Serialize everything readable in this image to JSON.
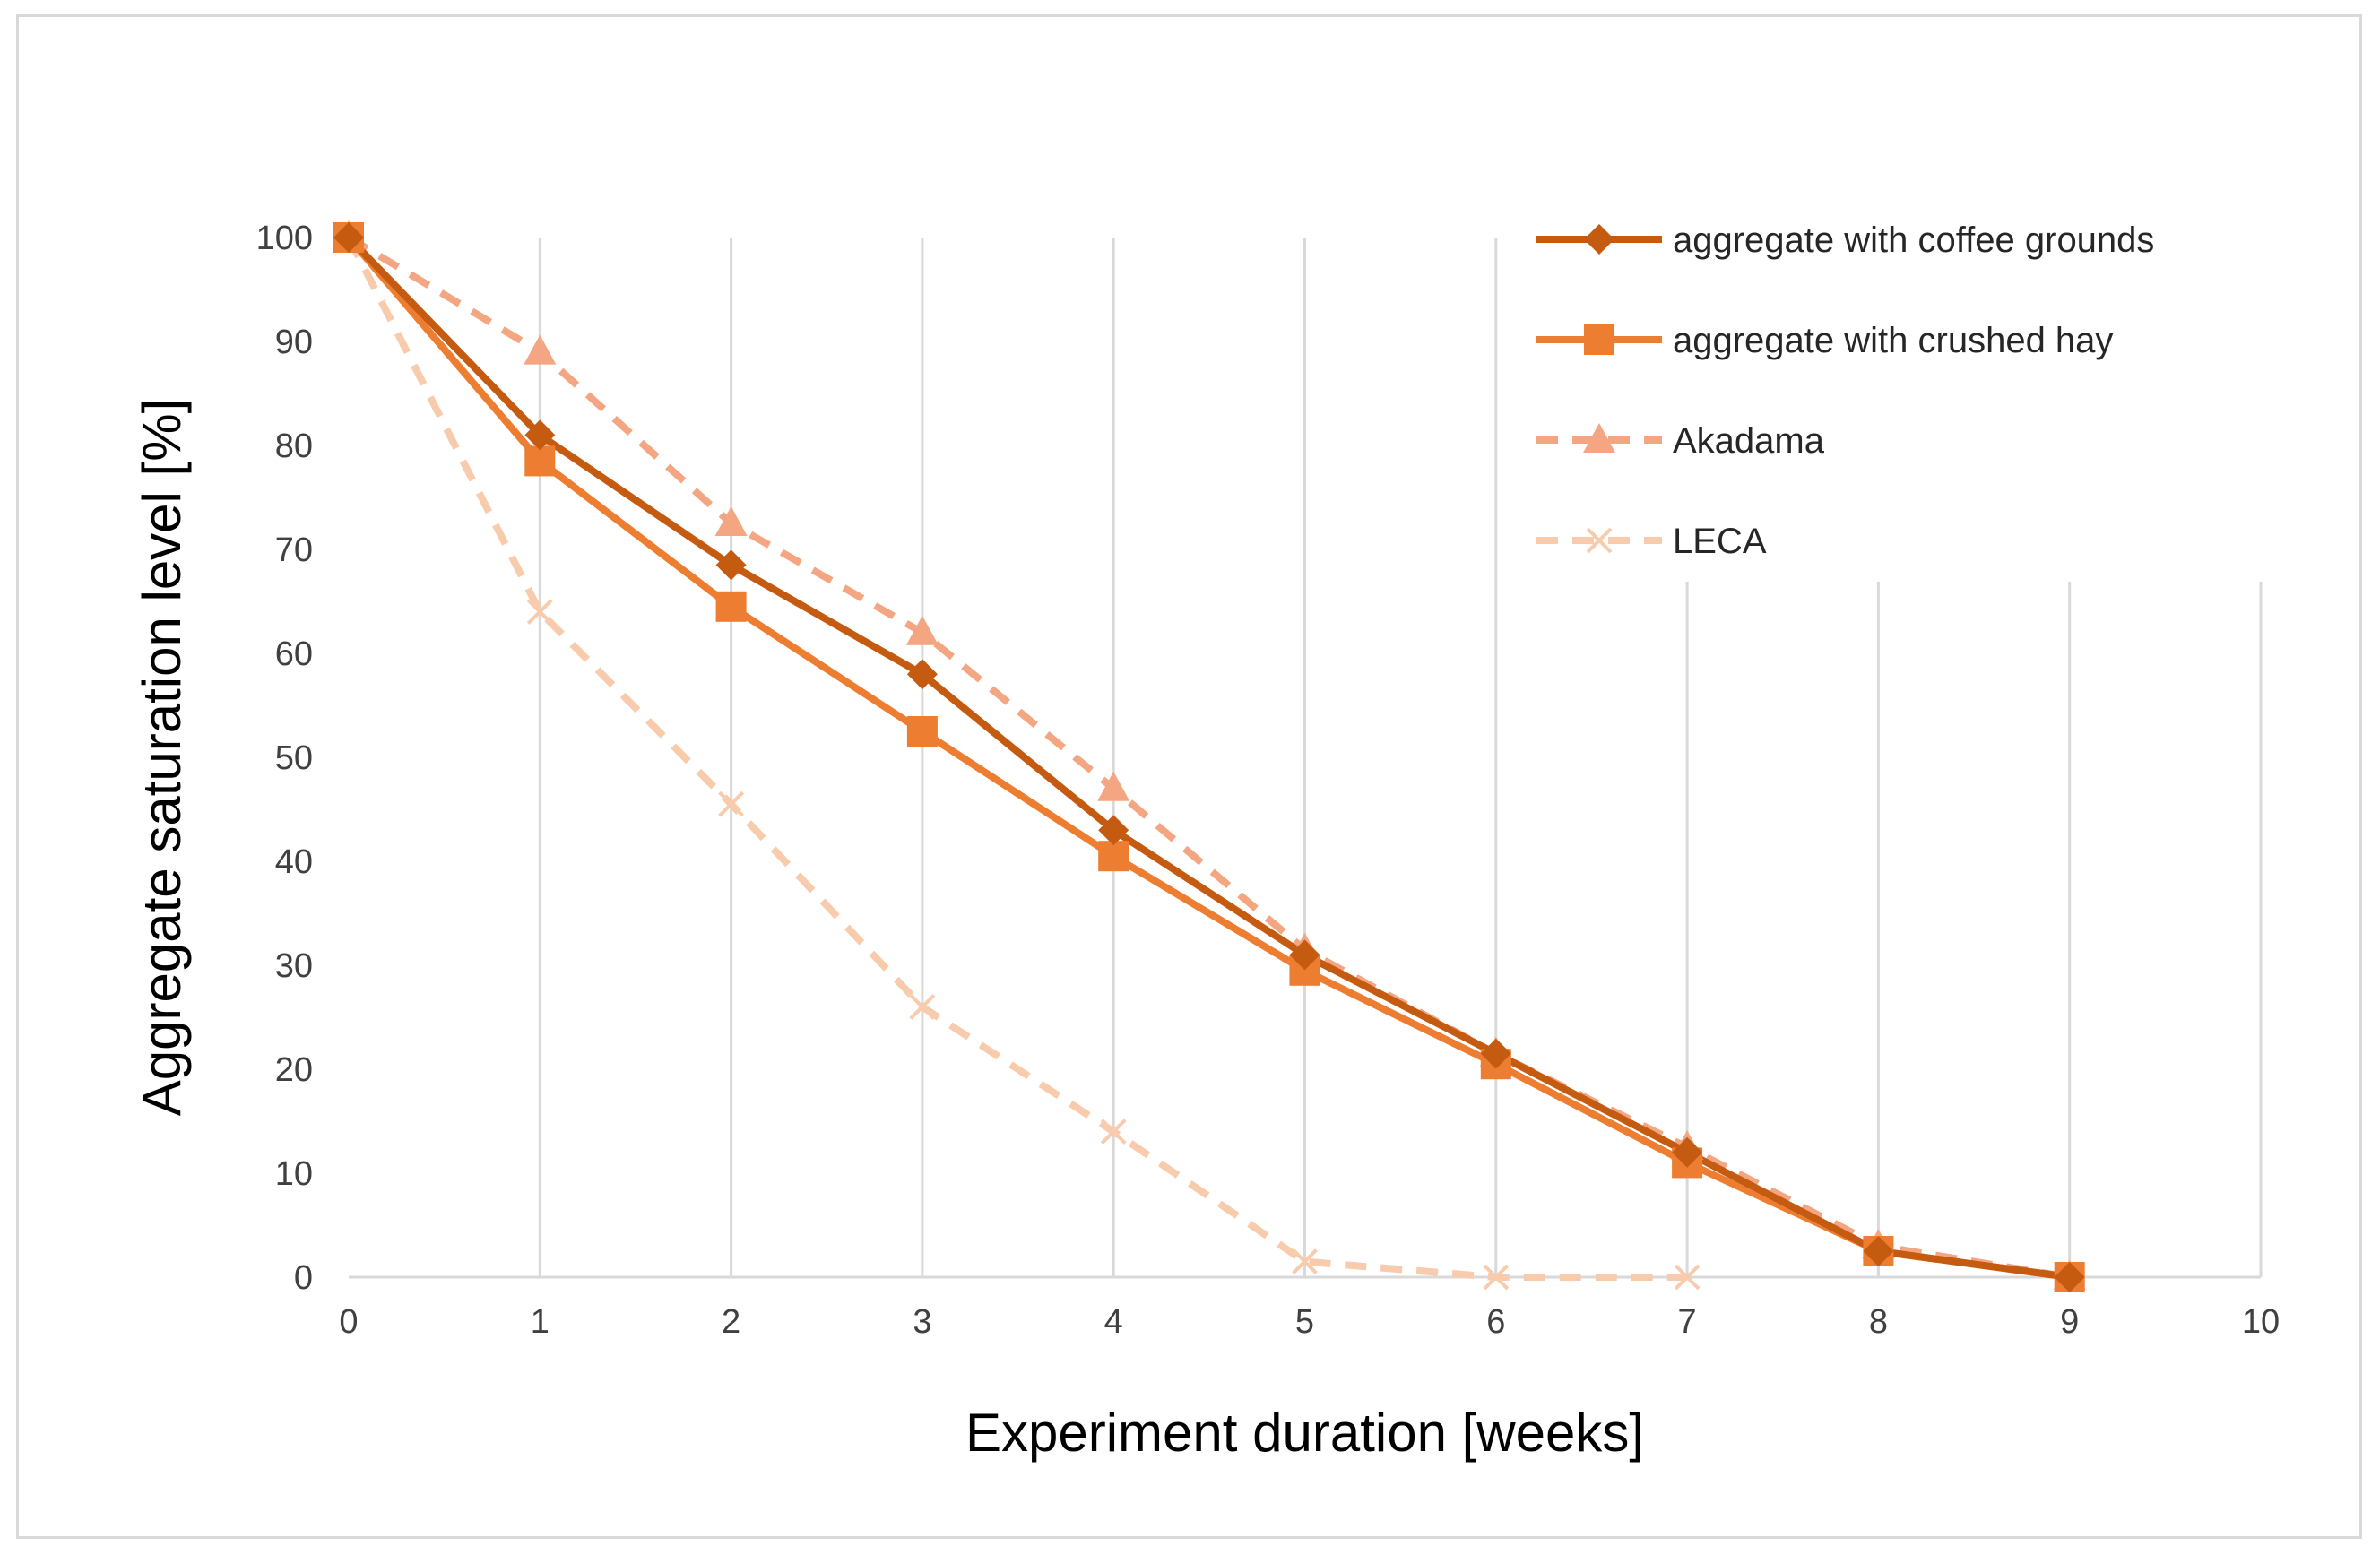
{
  "chart_data": {
    "type": "line",
    "title": "",
    "xlabel": "Experiment duration [weeks]",
    "ylabel": "Aggregate saturation level [%]",
    "xlim": [
      0,
      10
    ],
    "ylim": [
      0,
      100
    ],
    "xticks": [
      0,
      1,
      2,
      3,
      4,
      5,
      6,
      7,
      8,
      9,
      10
    ],
    "yticks": [
      0,
      10,
      20,
      30,
      40,
      50,
      60,
      70,
      80,
      90,
      100
    ],
    "grid": "vertical",
    "legend_position": "top-right",
    "series": [
      {
        "name": "aggregate with coffee grounds",
        "color": "#c55a11",
        "dash": "solid",
        "marker": "diamond",
        "x": [
          0,
          1,
          2,
          3,
          4,
          5,
          6,
          7,
          8,
          9
        ],
        "values": [
          100,
          81,
          68.5,
          58,
          43,
          31,
          21.5,
          12,
          2.5,
          0
        ]
      },
      {
        "name": "aggregate with crushed hay",
        "color": "#ed7d31",
        "dash": "solid",
        "marker": "square",
        "x": [
          0,
          1,
          2,
          3,
          4,
          5,
          6,
          7,
          8,
          9
        ],
        "values": [
          100,
          78.5,
          64.5,
          52.5,
          40.5,
          29.5,
          20.5,
          11,
          2.5,
          0
        ]
      },
      {
        "name": "Akadama",
        "color": "#f4a582",
        "dash": "dashed",
        "marker": "triangle",
        "x": [
          0,
          1,
          2,
          3,
          4,
          5,
          6,
          7,
          8,
          9
        ],
        "values": [
          100,
          89,
          72.5,
          62,
          47,
          31.5,
          21.5,
          12.5,
          3,
          0
        ]
      },
      {
        "name": "LECA",
        "color": "#f8cbad",
        "dash": "dashed",
        "marker": "x",
        "x": [
          0,
          1,
          2,
          3,
          4,
          5,
          6,
          7
        ],
        "values": [
          100,
          64,
          45.5,
          26,
          14,
          1.5,
          0,
          0
        ]
      }
    ]
  }
}
